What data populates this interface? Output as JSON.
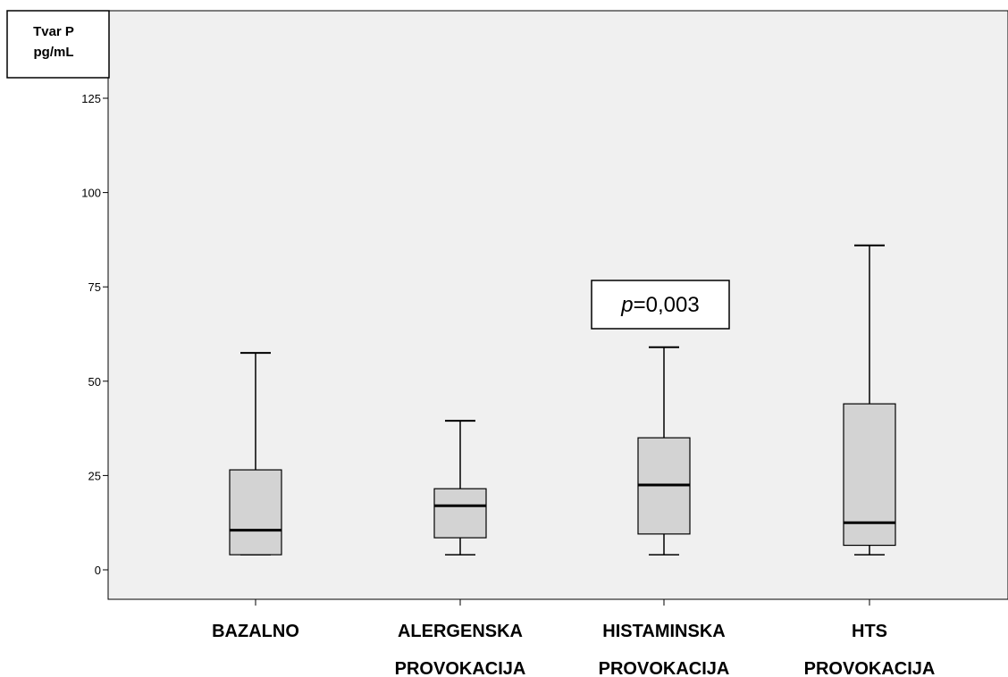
{
  "chart_data": {
    "type": "box",
    "ylabel": [
      "Tvar P",
      "pg/mL"
    ],
    "ylim": [
      -7,
      150
    ],
    "yticks": [
      0,
      25,
      50,
      75,
      100,
      125
    ],
    "grid": false,
    "categories": [
      [
        "BAZALNO"
      ],
      [
        "ALERGENSKA",
        "PROVOKACIJA"
      ],
      [
        "HISTAMINSKA",
        "PROVOKACIJA"
      ],
      [
        "HTS",
        "PROVOKACIJA"
      ]
    ],
    "boxes": [
      {
        "min": 4,
        "q1": 4,
        "median": 10.5,
        "q3": 26.5,
        "max": 57.5
      },
      {
        "min": 4,
        "q1": 8.5,
        "median": 17,
        "q3": 21.5,
        "max": 39.5
      },
      {
        "min": 4,
        "q1": 9.5,
        "median": 22.5,
        "q3": 35,
        "max": 59
      },
      {
        "min": 4,
        "q1": 6.5,
        "median": 12.5,
        "q3": 44,
        "max": 86
      }
    ],
    "annotations": [
      {
        "italic": "p",
        "text": "=0,003",
        "category_index": 2,
        "y": 69
      }
    ],
    "colors": {
      "plot_bg": "#f0f0f0",
      "box_fill": "#d3d3d3",
      "stroke": "#000000"
    }
  }
}
